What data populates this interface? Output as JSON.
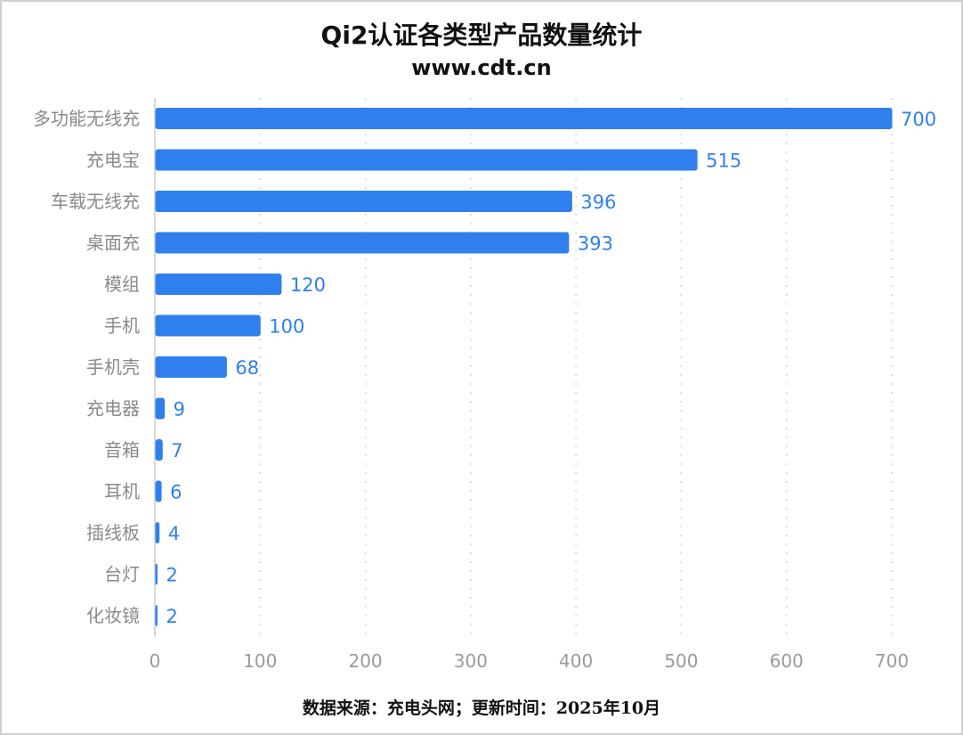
{
  "chart_data": {
    "type": "bar",
    "orientation": "horizontal",
    "title": "Qi2认证各类型产品数量统计",
    "subtitle": "www.cdt.cn",
    "categories": [
      "多功能无线充",
      "充电宝",
      "车载无线充",
      "桌面充",
      "模组",
      "手机",
      "手机壳",
      "充电器",
      "音箱",
      "耳机",
      "插线板",
      "台灯",
      "化妆镜"
    ],
    "values": [
      700,
      515,
      396,
      393,
      120,
      100,
      68,
      9,
      7,
      6,
      4,
      2,
      2
    ],
    "xlim": [
      0,
      700
    ],
    "xticks": [
      0,
      100,
      200,
      300,
      400,
      500,
      600,
      700
    ],
    "grid": "vertical dotted",
    "bar_color": "#2f80ed",
    "data_labels": true
  },
  "footer": "数据来源：充电头网；更新时间：2025年10月"
}
